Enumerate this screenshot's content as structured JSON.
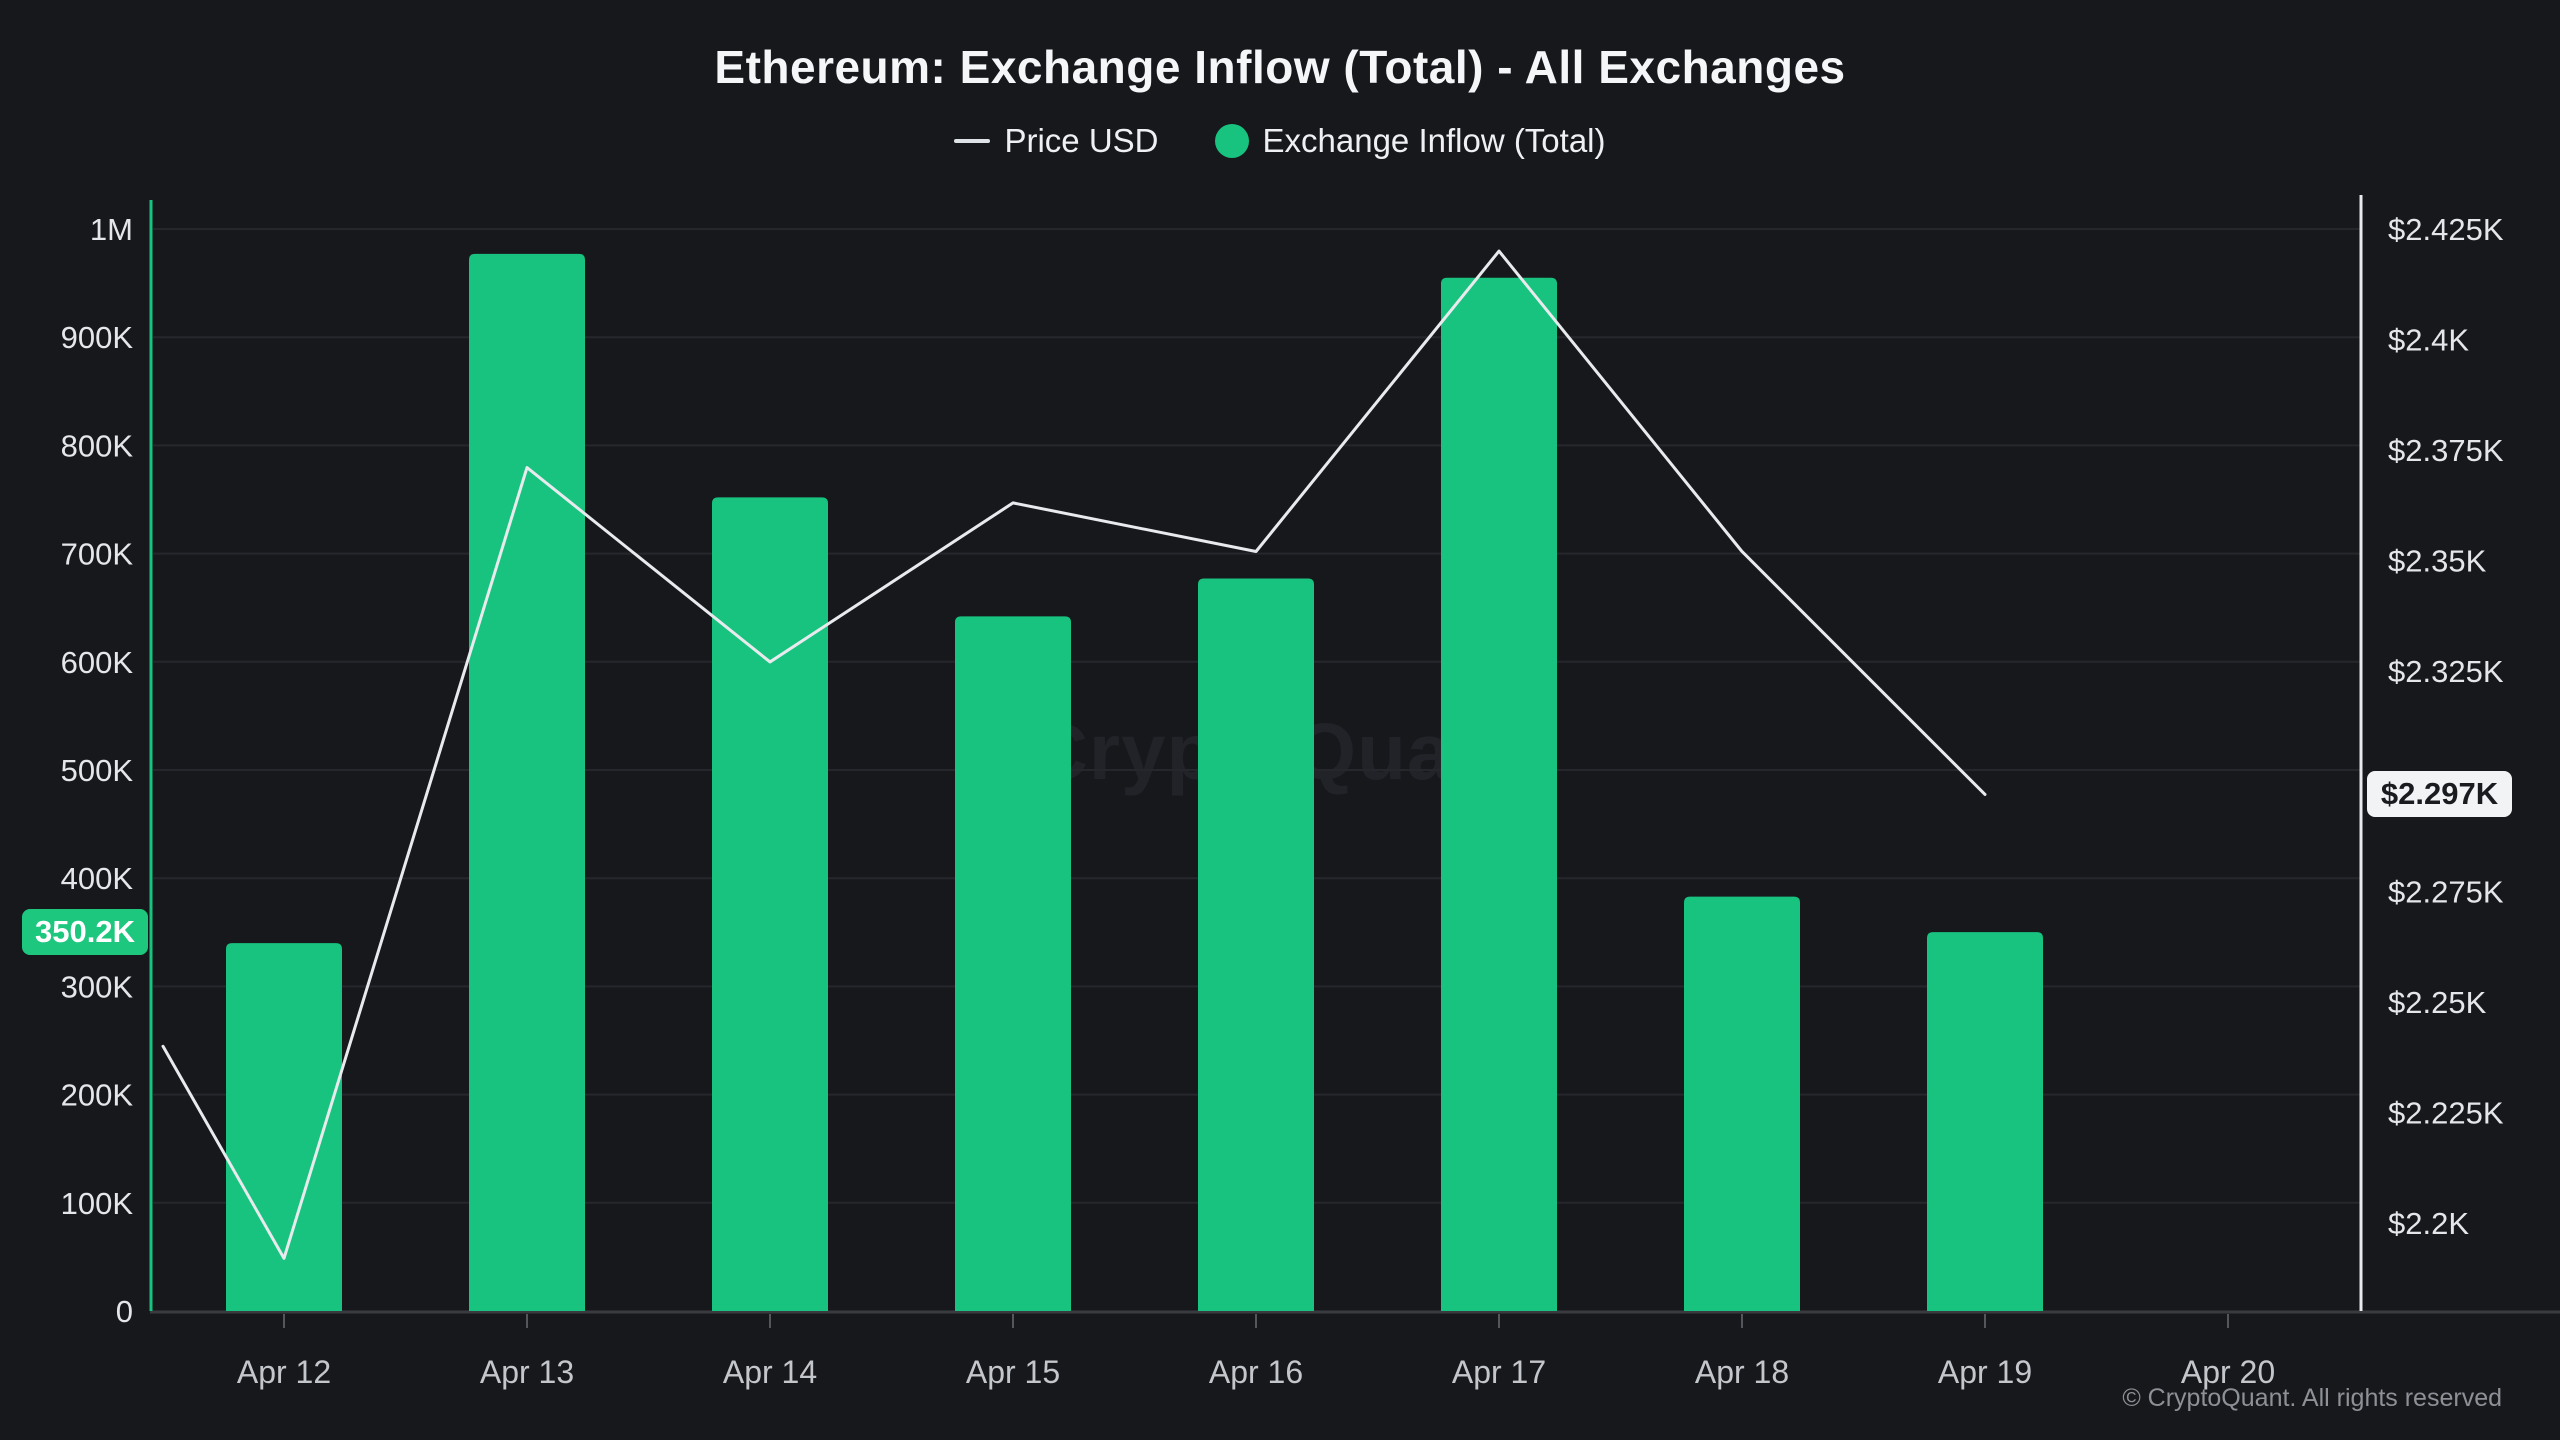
{
  "title": "Ethereum: Exchange Inflow (Total) - All Exchanges",
  "legend": [
    {
      "label": "Price USD",
      "marker": "line"
    },
    {
      "label": "Exchange Inflow (Total)",
      "marker": "circle"
    }
  ],
  "watermark": "CryptoQuant",
  "footer": "© CryptoQuant. All rights reserved",
  "badges": {
    "inflow_last": "350.2K",
    "price_last": "$2.297K"
  },
  "colors": {
    "background": "#17181c",
    "bar_green": "#17c37f",
    "badge_green": "#1dc77e",
    "badge_white": "#f2f3f5",
    "price_line": "#e8eaed",
    "gridline": "#26272c",
    "bottom_axis": "#3a3b41",
    "tick_mark": "#55565c",
    "y_label": "#e4e6ea",
    "x_label": "#c3c6cb"
  },
  "chart_data": {
    "type": "combo",
    "title": "Ethereum: Exchange Inflow (Total) - All Exchanges",
    "categories": [
      "Apr 12",
      "Apr 13",
      "Apr 14",
      "Apr 15",
      "Apr 16",
      "Apr 17",
      "Apr 18",
      "Apr 19",
      "Apr 20"
    ],
    "series": [
      {
        "name": "Exchange Inflow (Total)",
        "type": "bar",
        "values": [
          340000,
          977000,
          752000,
          642000,
          677000,
          955000,
          383000,
          350200,
          null
        ],
        "last_value_label": "350.2K"
      },
      {
        "name": "Price USD",
        "type": "line",
        "values_usd_k": [
          2.192,
          2.371,
          2.327,
          2.363,
          2.352,
          2.42,
          2.352,
          2.297,
          null
        ],
        "edge_start_usd_k": 2.24,
        "last_value_label": "$2.297K"
      }
    ],
    "left_axis": {
      "side": "left",
      "range": [
        0,
        1027000
      ],
      "ticks": [
        {
          "v": 0,
          "label": "0"
        },
        {
          "v": 100000,
          "label": "100K"
        },
        {
          "v": 200000,
          "label": "200K"
        },
        {
          "v": 300000,
          "label": "300K"
        },
        {
          "v": 400000,
          "label": "400K"
        },
        {
          "v": 500000,
          "label": "500K"
        },
        {
          "v": 600000,
          "label": "600K"
        },
        {
          "v": 700000,
          "label": "700K"
        },
        {
          "v": 800000,
          "label": "800K"
        },
        {
          "v": 900000,
          "label": "900K"
        },
        {
          "v": 1000000,
          "label": "1M"
        }
      ]
    },
    "right_axis": {
      "side": "right",
      "range_usd_k": [
        2.18,
        2.432
      ],
      "ticks": [
        {
          "v": 2.2,
          "label": "$2.2K"
        },
        {
          "v": 2.225,
          "label": "$2.225K"
        },
        {
          "v": 2.25,
          "label": "$2.25K"
        },
        {
          "v": 2.275,
          "label": "$2.275K"
        },
        {
          "v": 2.325,
          "label": "$2.325K"
        },
        {
          "v": 2.35,
          "label": "$2.35K"
        },
        {
          "v": 2.375,
          "label": "$2.375K"
        },
        {
          "v": 2.4,
          "label": "$2.4K"
        },
        {
          "v": 2.425,
          "label": "$2.425K"
        }
      ]
    },
    "grid": "horizontal",
    "legend_position": "top"
  }
}
